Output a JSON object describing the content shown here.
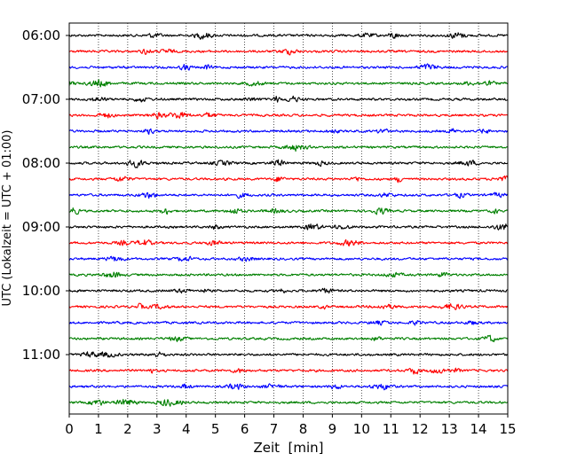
{
  "chart_data": {
    "type": "line",
    "title": "",
    "xlabel": "Zeit  [min]",
    "ylabel": "UTC (Lokalzeit = UTC + 01:00)",
    "xlim": [
      0,
      15
    ],
    "x_ticks": [
      "0",
      "1",
      "2",
      "3",
      "4",
      "5",
      "6",
      "7",
      "8",
      "9",
      "10",
      "11",
      "12",
      "13",
      "14",
      "15"
    ],
    "y_ticks": [
      "06:00",
      "07:00",
      "08:00",
      "09:00",
      "10:00",
      "11:00"
    ],
    "grid": "vertical dotted",
    "row_interval_minutes": 15,
    "series": [
      {
        "start": "06:00",
        "color": "#000000"
      },
      {
        "start": "06:15",
        "color": "#ff0000"
      },
      {
        "start": "06:30",
        "color": "#0000ff"
      },
      {
        "start": "06:45",
        "color": "#008000"
      },
      {
        "start": "07:00",
        "color": "#000000"
      },
      {
        "start": "07:15",
        "color": "#ff0000"
      },
      {
        "start": "07:30",
        "color": "#0000ff"
      },
      {
        "start": "07:45",
        "color": "#008000"
      },
      {
        "start": "08:00",
        "color": "#000000"
      },
      {
        "start": "08:15",
        "color": "#ff0000"
      },
      {
        "start": "08:30",
        "color": "#0000ff"
      },
      {
        "start": "08:45",
        "color": "#008000"
      },
      {
        "start": "09:00",
        "color": "#000000"
      },
      {
        "start": "09:15",
        "color": "#ff0000"
      },
      {
        "start": "09:30",
        "color": "#0000ff"
      },
      {
        "start": "09:45",
        "color": "#008000"
      },
      {
        "start": "10:00",
        "color": "#000000"
      },
      {
        "start": "10:15",
        "color": "#ff0000"
      },
      {
        "start": "10:30",
        "color": "#0000ff"
      },
      {
        "start": "10:45",
        "color": "#008000"
      },
      {
        "start": "11:00",
        "color": "#000000"
      },
      {
        "start": "11:15",
        "color": "#ff0000"
      },
      {
        "start": "11:30",
        "color": "#0000ff"
      },
      {
        "start": "11:45",
        "color": "#008000"
      }
    ]
  }
}
